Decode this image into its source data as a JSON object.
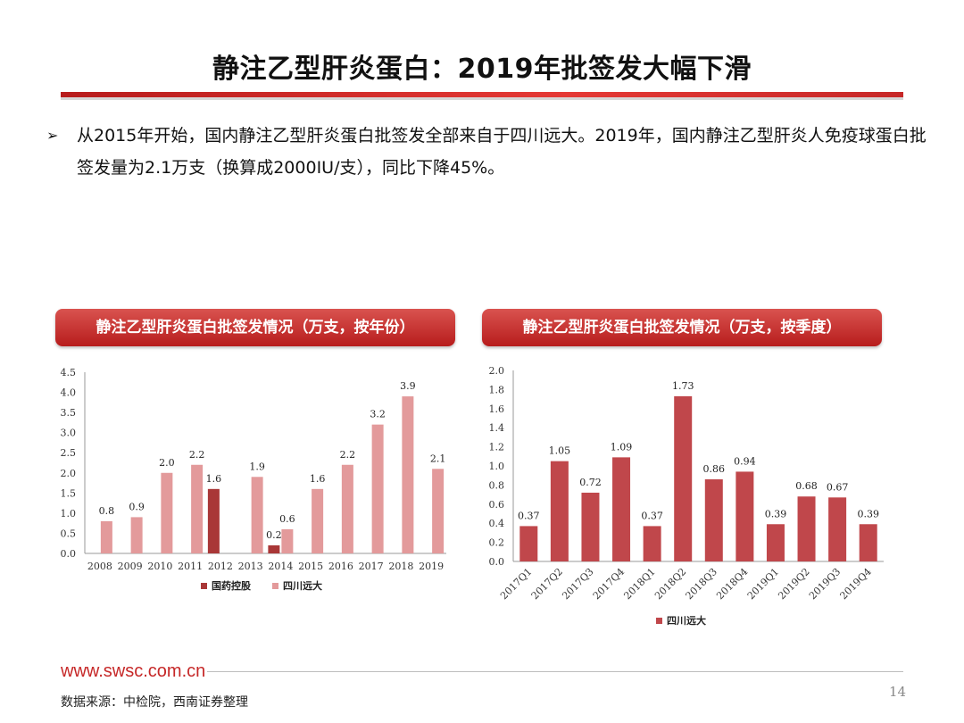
{
  "title": "静注乙型肝炎蛋白：2019年批签发大幅下滑",
  "bullet": {
    "marker": "➢",
    "text": "从2015年开始，国内静注乙型肝炎蛋白批签发全部来自于四川远大。2019年，国内静注乙型肝炎人免疫球蛋白批签发量为2.1万支（换算成2000IU/支），同比下降45%。"
  },
  "chart_headers": {
    "left": "静注乙型肝炎蛋白批签发情况（万支，按年份）",
    "right": "静注乙型肝炎蛋白批签发情况（万支，按季度）"
  },
  "chart_data": [
    {
      "type": "bar",
      "categories": [
        "2008",
        "2009",
        "2010",
        "2011",
        "2012",
        "2013",
        "2014",
        "2015",
        "2016",
        "2017",
        "2018",
        "2019"
      ],
      "series": [
        {
          "name": "国药控股",
          "color": "#a93737",
          "values": [
            0,
            0,
            0,
            0,
            1.6,
            0,
            0.2,
            0,
            0,
            0,
            0,
            0
          ]
        },
        {
          "name": "四川远大",
          "color": "#e39a9b",
          "values": [
            0.8,
            0.9,
            2.0,
            2.2,
            0,
            1.9,
            0.6,
            1.6,
            2.2,
            3.2,
            3.9,
            2.1
          ]
        }
      ],
      "data_labels": [
        "0.8",
        "0.9",
        "2.0",
        "2.2",
        "1.6",
        "1.9",
        "0.2",
        "0.6",
        "1.6",
        "2.2",
        "3.2",
        "3.9",
        "2.1"
      ],
      "yticks": [
        "0.0",
        "0.5",
        "1.0",
        "1.5",
        "2.0",
        "2.5",
        "3.0",
        "3.5",
        "4.0",
        "4.5"
      ],
      "ylim": [
        0,
        4.5
      ],
      "legend": "bottom"
    },
    {
      "type": "bar",
      "categories": [
        "2017Q1",
        "2017Q2",
        "2017Q3",
        "2017Q4",
        "2018Q1",
        "2018Q2",
        "2018Q3",
        "2018Q4",
        "2019Q1",
        "2019Q2",
        "2019Q3",
        "2019Q4"
      ],
      "series": [
        {
          "name": "四川远大",
          "color": "#c0474b",
          "values": [
            0.37,
            1.05,
            0.72,
            1.09,
            0.37,
            1.73,
            0.86,
            0.94,
            0.39,
            0.68,
            0.67,
            0.39
          ]
        }
      ],
      "data_labels": [
        "0.37",
        "1.05",
        "0.72",
        "1.09",
        "0.37",
        "1.73",
        "0.86",
        "0.94",
        "0.39",
        "0.68",
        "0.67",
        "0.39"
      ],
      "yticks": [
        "0.0",
        "0.2",
        "0.4",
        "0.6",
        "0.8",
        "1.0",
        "1.2",
        "1.4",
        "1.6",
        "1.8",
        "2.0"
      ],
      "ylim": [
        0,
        2.0
      ],
      "legend": "bottom"
    }
  ],
  "footer": {
    "url": "www.swsc.com.cn",
    "source": "数据来源：中检院，西南证券整理",
    "page": "14"
  }
}
